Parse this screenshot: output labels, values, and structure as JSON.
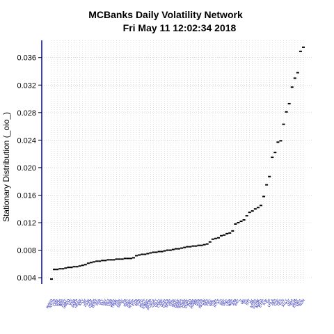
{
  "chart_data": {
    "type": "scatter",
    "title": "MCBanks  Daily Volatility Network",
    "subtitle": "Fri May 11 12:02:34 2018",
    "xlabel": "",
    "ylabel": "Stationary Distribution (_oio_)",
    "ylim": [
      0.0031,
      0.0385
    ],
    "yticks": [
      0.004,
      0.008,
      0.012,
      0.016,
      0.02,
      0.024,
      0.028,
      0.032,
      0.036
    ],
    "ytick_labels": [
      "0.004",
      "0.008",
      "0.012",
      "0.016",
      "0.020",
      "0.024",
      "0.028",
      "0.032",
      "0.036"
    ],
    "grid": true,
    "point_color": "#000000",
    "axis_color": "#0000aa",
    "grid_color": "#c8c8c8",
    "values": [
      0.0038,
      0.0052,
      0.0052,
      0.0053,
      0.0053,
      0.0054,
      0.0055,
      0.0055,
      0.0056,
      0.0056,
      0.0057,
      0.0058,
      0.0059,
      0.0061,
      0.0062,
      0.0063,
      0.0064,
      0.0064,
      0.0065,
      0.0065,
      0.0066,
      0.0066,
      0.0066,
      0.0067,
      0.0067,
      0.0067,
      0.0068,
      0.0068,
      0.0068,
      0.0069,
      0.0072,
      0.0073,
      0.0074,
      0.0074,
      0.0075,
      0.0076,
      0.0077,
      0.0077,
      0.0078,
      0.0078,
      0.0079,
      0.008,
      0.008,
      0.0081,
      0.0082,
      0.0082,
      0.0083,
      0.0084,
      0.0085,
      0.0085,
      0.0086,
      0.0086,
      0.0087,
      0.0087,
      0.0088,
      0.0089,
      0.0092,
      0.0096,
      0.0097,
      0.0098,
      0.0101,
      0.0102,
      0.0104,
      0.0105,
      0.0108,
      0.0118,
      0.012,
      0.0122,
      0.0124,
      0.013,
      0.0135,
      0.0137,
      0.014,
      0.0142,
      0.0145,
      0.0158,
      0.0175,
      0.0187,
      0.0215,
      0.0222,
      0.0237,
      0.0239,
      0.0263,
      0.0281,
      0.0293,
      0.0317,
      0.033,
      0.0338,
      0.0369,
      0.0375
    ],
    "categories": [
      "WAFD",
      "NYCB",
      "CMA",
      "BOH",
      "WBS",
      "FULT",
      "UMPQ",
      "TCF",
      "FNB",
      "PNFP",
      "HBAN",
      "KEY",
      "RF",
      "ZION",
      "CFR",
      "CBSH",
      "BOKF",
      "ASB",
      "VLY",
      "SNV",
      "BKU",
      "ONB",
      "UBSI",
      "TRMK",
      "FHN",
      "SBNY",
      "PB",
      "IBKC",
      "HWC",
      "WTFC",
      "FITB",
      "MTB",
      "CFG",
      "PBCT",
      "EWBC",
      "BPOP",
      "FCNCA",
      "CATY",
      "GBCI",
      "CVBF",
      "UCBI",
      "COLB",
      "SFNC",
      "FFIN",
      "IBOC",
      "BANF",
      "WSFS",
      "TOWN",
      "OZRK",
      "CHCO",
      "FMBI",
      "HOMB",
      "SSB",
      "SIVB",
      "PACW",
      "BXS",
      "FRC",
      "WAL",
      "TCBI",
      "HTLF",
      "STI",
      "BBT",
      "PNC",
      "USB",
      "WFC",
      "JPM",
      "BAC",
      "C",
      "MS",
      "GS",
      "STT",
      "BK",
      "NTRS",
      "SCHW",
      "AMTD",
      "ETFC",
      "RJF",
      "SF",
      "LPLA",
      "AXP",
      "COF",
      "DFS",
      "SYF",
      "ALLY",
      "CIT",
      "NAVI",
      "SLM",
      "ESNT",
      "MTG",
      "RDN"
    ]
  }
}
